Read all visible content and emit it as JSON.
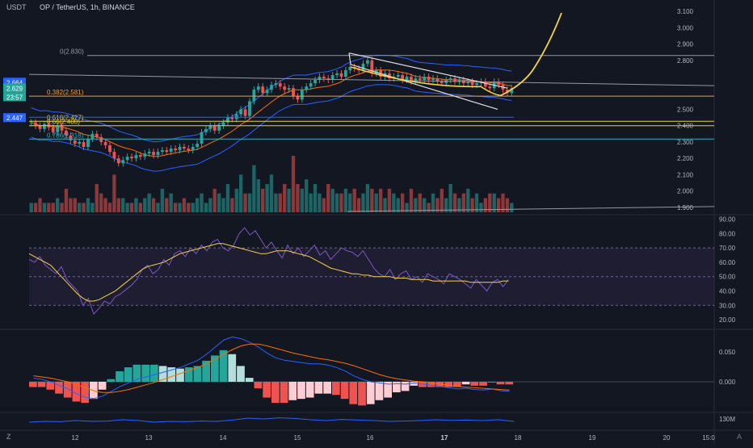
{
  "header": {
    "currency": "USDT",
    "symbol_line": "OP / TetherUS, 1h, BINANCE"
  },
  "colors": {
    "background": "#131722",
    "up": "#26a69a",
    "down": "#ef5350",
    "bb_line": "#2962ff",
    "ema_line": "#ff6d00",
    "drawing_yellow": "#f5d442",
    "fib_orange": "#f0a030",
    "fib_yellow": "#e8d040",
    "fib_teal": "#30b0c0",
    "rsi_line": "#7e57c2",
    "rsi_ma": "#f5d442",
    "macd_line": "#2962ff",
    "signal_line": "#ff6d00",
    "price_blue": "#2962ff",
    "price_green": "#26a69a",
    "price_dark": "#3a3f4b"
  },
  "price_axis": {
    "ticks": [
      "3.100",
      "3.000",
      "2.900",
      "2.800",
      "2.500",
      "2.400",
      "2.300",
      "2.200",
      "2.100",
      "2.000",
      "1.900"
    ],
    "labels": [
      {
        "text": "2.664",
        "kind": "price_blue"
      },
      {
        "text": "2.629",
        "kind": "price_green"
      },
      {
        "text": "23:57",
        "kind": "price_green"
      },
      {
        "text": "2.447",
        "kind": "price_blue"
      }
    ]
  },
  "rsi_axis": {
    "ticks": [
      "90.00",
      "80.00",
      "70.00",
      "60.00",
      "50.00",
      "40.00",
      "30.00",
      "20.00"
    ]
  },
  "macd_axis": {
    "ticks": [
      "0.050",
      "0.000"
    ]
  },
  "vol_axis": {
    "ticks": [
      "130M"
    ]
  },
  "time_axis": {
    "ticks": [
      "12",
      "13",
      "14",
      "15",
      "16",
      "17",
      "18",
      "19",
      "20",
      "15:0"
    ]
  },
  "fib_labels": [
    {
      "text": "0(2.830)",
      "value": 2.83
    },
    {
      "text": "0.382(2.581)",
      "value": 2.581
    },
    {
      "text": "0.618(2.427)",
      "value": 2.427
    },
    {
      "text": "0.66(2.400)",
      "value": 2.4
    },
    {
      "text": "0.786(2.318)",
      "value": 2.318
    }
  ],
  "footer": {
    "logo": "Z",
    "auto": "A"
  },
  "chart_data": {
    "type": "candlestick",
    "instrument": "OP / TetherUS",
    "interval": "1h",
    "exchange": "BINANCE",
    "x_ticks": [
      "12",
      "13",
      "14",
      "15",
      "16",
      "17",
      "18",
      "19",
      "20",
      "15:0"
    ],
    "price_ylim": [
      1.86,
      3.12
    ],
    "close_series": [
      2.42,
      2.4,
      2.38,
      2.41,
      2.39,
      2.36,
      2.4,
      2.37,
      2.34,
      2.31,
      2.29,
      2.3,
      2.27,
      2.32,
      2.35,
      2.33,
      2.3,
      2.28,
      2.24,
      2.2,
      2.17,
      2.19,
      2.21,
      2.2,
      2.22,
      2.21,
      2.23,
      2.24,
      2.22,
      2.24,
      2.25,
      2.24,
      2.26,
      2.25,
      2.27,
      2.26,
      2.25,
      2.27,
      2.29,
      2.36,
      2.38,
      2.4,
      2.37,
      2.4,
      2.42,
      2.45,
      2.44,
      2.47,
      2.5,
      2.46,
      2.55,
      2.62,
      2.64,
      2.6,
      2.62,
      2.65,
      2.66,
      2.64,
      2.62,
      2.63,
      2.58,
      2.56,
      2.62,
      2.64,
      2.66,
      2.68,
      2.7,
      2.69,
      2.68,
      2.71,
      2.72,
      2.7,
      2.74,
      2.76,
      2.75,
      2.74,
      2.78,
      2.8,
      2.72,
      2.74,
      2.7,
      2.72,
      2.69,
      2.7,
      2.71,
      2.68,
      2.7,
      2.67,
      2.69,
      2.68,
      2.7,
      2.68,
      2.69,
      2.67,
      2.66,
      2.68,
      2.69,
      2.67,
      2.68,
      2.66,
      2.67,
      2.65,
      2.66,
      2.67,
      2.64,
      2.63,
      2.67,
      2.65,
      2.62,
      2.6,
      2.63
    ],
    "volume_series": [
      2,
      2,
      3,
      2,
      2,
      2,
      3,
      2,
      5,
      3,
      3,
      2,
      2,
      3,
      2,
      6,
      4,
      3,
      2,
      8,
      3,
      3,
      2,
      2,
      3,
      2,
      3,
      4,
      3,
      2,
      5,
      3,
      4,
      2,
      2,
      3,
      2,
      2,
      3,
      4,
      2,
      3,
      5,
      4,
      3,
      6,
      3,
      5,
      8,
      4,
      4,
      10,
      7,
      5,
      6,
      8,
      4,
      4,
      6,
      5,
      12,
      6,
      5,
      7,
      4,
      6,
      4,
      3,
      6,
      5,
      4,
      4,
      5,
      4,
      5,
      3,
      4,
      6,
      5,
      4,
      5,
      3,
      5,
      4,
      3,
      4,
      2,
      5,
      3,
      4,
      3,
      2,
      4,
      3,
      5,
      3,
      6,
      4,
      3,
      4,
      5,
      3,
      4,
      2,
      3,
      4,
      4,
      3,
      4,
      3,
      2
    ],
    "rsi": {
      "ylim": [
        15,
        92
      ],
      "band": [
        30,
        70
      ],
      "mid": 50,
      "values": [
        62,
        60,
        64,
        58,
        55,
        52,
        57,
        48,
        44,
        40,
        30,
        35,
        24,
        28,
        33,
        31,
        36,
        38,
        41,
        44,
        48,
        55,
        58,
        52,
        55,
        62,
        58,
        66,
        68,
        64,
        70,
        66,
        72,
        68,
        74,
        76,
        70,
        68,
        72,
        80,
        84,
        79,
        82,
        76,
        70,
        74,
        68,
        63,
        72,
        66,
        70,
        64,
        68,
        72,
        65,
        68,
        62,
        66,
        70,
        68,
        67,
        64,
        68,
        62,
        56,
        52,
        50,
        55,
        48,
        52,
        54,
        48,
        50,
        46,
        52,
        50,
        48,
        45,
        52,
        50,
        48,
        45,
        42,
        48,
        44,
        40,
        46,
        48,
        43,
        48
      ],
      "ma_values": [
        66,
        64,
        62,
        60,
        58,
        54,
        50,
        46,
        42,
        38,
        35,
        33,
        33,
        34,
        36,
        38,
        40,
        43,
        46,
        49,
        52,
        55,
        57,
        58,
        59,
        60,
        62,
        64,
        66,
        67,
        68,
        69,
        70,
        71,
        72,
        73,
        73,
        72,
        71,
        70,
        69,
        68,
        67,
        66,
        66,
        67,
        68,
        68,
        68,
        67,
        66,
        65,
        64,
        62,
        60,
        58,
        56,
        55,
        54,
        53,
        52,
        52,
        51,
        51,
        50,
        50,
        50,
        50,
        49,
        49,
        49,
        48,
        48,
        48,
        48,
        47,
        47,
        47,
        47,
        47,
        47,
        47,
        46,
        46,
        46,
        46,
        46,
        46,
        47,
        47
      ]
    },
    "macd": {
      "ylim": [
        -0.05,
        0.085
      ],
      "macd_values": [
        0.006,
        0.004,
        0.0,
        -0.006,
        -0.012,
        -0.02,
        -0.026,
        -0.028,
        -0.024,
        -0.016,
        -0.008,
        -0.002,
        0.004,
        0.008,
        0.012,
        0.016,
        0.02,
        0.024,
        0.03,
        0.036,
        0.046,
        0.058,
        0.07,
        0.075,
        0.072,
        0.066,
        0.058,
        0.048,
        0.04,
        0.036,
        0.034,
        0.032,
        0.03,
        0.03,
        0.028,
        0.024,
        0.018,
        0.01,
        0.004,
        0.0,
        -0.002,
        -0.004,
        -0.003,
        -0.004,
        -0.002,
        -0.004,
        -0.006,
        -0.008,
        -0.01,
        -0.012,
        -0.011,
        -0.013,
        -0.014,
        -0.012,
        -0.015,
        -0.016
      ],
      "signal_values": [
        0.01,
        0.008,
        0.006,
        0.003,
        0.0,
        -0.005,
        -0.01,
        -0.015,
        -0.018,
        -0.018,
        -0.016,
        -0.013,
        -0.009,
        -0.005,
        -0.001,
        0.004,
        0.009,
        0.014,
        0.019,
        0.024,
        0.03,
        0.038,
        0.046,
        0.054,
        0.06,
        0.063,
        0.063,
        0.06,
        0.056,
        0.052,
        0.048,
        0.045,
        0.042,
        0.039,
        0.037,
        0.034,
        0.031,
        0.027,
        0.022,
        0.017,
        0.012,
        0.008,
        0.005,
        0.003,
        0.001,
        0.0,
        -0.002,
        -0.004,
        -0.006,
        -0.008,
        -0.009,
        -0.01,
        -0.011,
        -0.012,
        -0.013,
        -0.014
      ]
    },
    "volume_ma": {
      "values": [
        0.45,
        0.5,
        0.48,
        0.55,
        0.5,
        0.52,
        0.6,
        0.55,
        0.45,
        0.5,
        0.48,
        0.52,
        0.5,
        0.58,
        0.7,
        0.65,
        0.72,
        0.68,
        0.6,
        0.55,
        0.62,
        0.58,
        0.55,
        0.5,
        0.52,
        0.55,
        0.6,
        0.56,
        0.58,
        0.55,
        0.6,
        0.5
      ]
    }
  }
}
